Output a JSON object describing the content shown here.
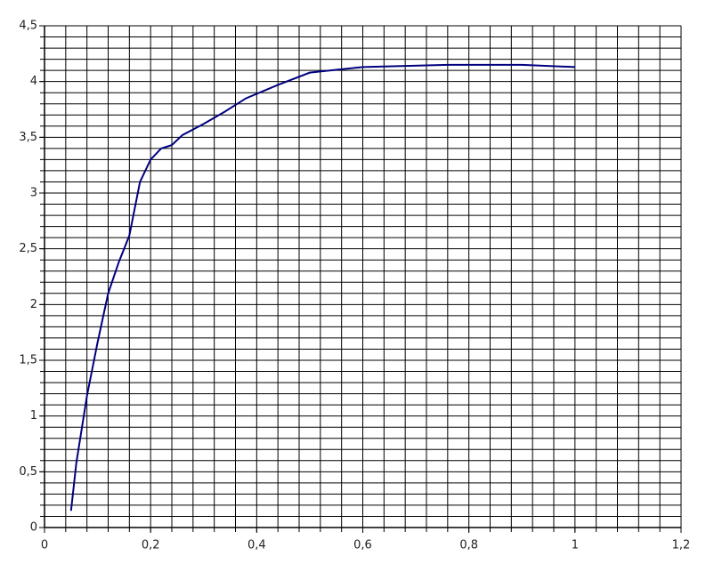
{
  "chart_data": {
    "type": "line",
    "color": "#000080",
    "x": [
      0.05,
      0.06,
      0.08,
      0.1,
      0.12,
      0.14,
      0.16,
      0.18,
      0.2,
      0.22,
      0.24,
      0.26,
      0.3,
      0.34,
      0.38,
      0.44,
      0.5,
      0.6,
      0.76,
      0.9,
      1.0
    ],
    "values": [
      0.15,
      0.58,
      1.18,
      1.66,
      2.1,
      2.38,
      2.62,
      3.1,
      3.3,
      3.4,
      3.43,
      3.52,
      3.62,
      3.73,
      3.85,
      3.97,
      4.08,
      4.13,
      4.15,
      4.15,
      4.13
    ],
    "xlim": [
      0,
      1.2
    ],
    "ylim": [
      0,
      4.5
    ],
    "xticks": [
      0,
      {
        "value": 0.2,
        "label": "0,2"
      },
      {
        "value": 0.4,
        "label": "0,4"
      },
      {
        "value": 0.6,
        "label": "0,6"
      },
      {
        "value": 0.8,
        "label": "0,8"
      },
      1,
      {
        "value": 1.2,
        "label": "1,2"
      }
    ],
    "yticks": [
      0,
      {
        "value": 0.5,
        "label": "0,5"
      },
      1,
      {
        "value": 1.5,
        "label": "1,5"
      },
      2,
      {
        "value": 2.5,
        "label": "2,5"
      },
      3,
      {
        "value": 3.5,
        "label": "3,5"
      },
      4,
      {
        "value": 4.5,
        "label": "4,5"
      }
    ],
    "xgrid": [
      0.04,
      0.08,
      0.12,
      0.16,
      0.2,
      0.24,
      0.28,
      0.32,
      0.36,
      0.4,
      0.44,
      0.48,
      0.52,
      0.56,
      0.6,
      0.64,
      0.68,
      0.72,
      0.76,
      0.8,
      0.84,
      0.88,
      0.92,
      0.96,
      1,
      1.04,
      1.08,
      1.12,
      1.16,
      1.2
    ],
    "ygrid": [
      0.1,
      0.2,
      0.3,
      0.4,
      0.5,
      0.6,
      0.7,
      0.8,
      0.9,
      1,
      1.1,
      1.2,
      1.3,
      1.4,
      1.5,
      1.6,
      1.7,
      1.8,
      1.9,
      2,
      2.1,
      2.2,
      2.3,
      2.4,
      2.5,
      2.6,
      2.7,
      2.8,
      2.9,
      3,
      3.1,
      3.2,
      3.3,
      3.4,
      3.5,
      3.6,
      3.7,
      3.8,
      3.9,
      4,
      4.1,
      4.2,
      4.3,
      4.4,
      4.5
    ]
  }
}
